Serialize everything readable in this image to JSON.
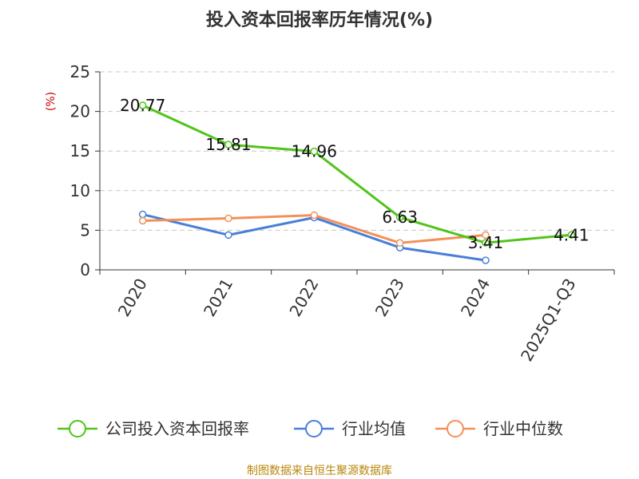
{
  "chart_data": {
    "type": "line",
    "title": "投入资本回报率历年情况(%)",
    "ylabel": "(%)",
    "xlabel": "",
    "categories": [
      "2020",
      "2021",
      "2022",
      "2023",
      "2024",
      "2025Q1-Q3"
    ],
    "ylim": [
      0,
      25
    ],
    "yticks": [
      0,
      5,
      10,
      15,
      20,
      25
    ],
    "grid": true,
    "legend_position": "bottom",
    "series": [
      {
        "name": "公司投入资本回报率",
        "color": "#52c41a",
        "values": [
          20.77,
          15.81,
          14.96,
          6.63,
          3.41,
          4.41
        ],
        "labels": [
          "20.77",
          "15.81",
          "14.96",
          "6.63",
          "3.41",
          "4.41"
        ]
      },
      {
        "name": "行业均值",
        "color": "#4a7fd8",
        "values": [
          7.0,
          4.4,
          6.6,
          2.8,
          1.2,
          null
        ]
      },
      {
        "name": "行业中位数",
        "color": "#f4905a",
        "values": [
          6.2,
          6.5,
          6.9,
          3.4,
          4.4,
          null
        ]
      }
    ],
    "source": "制图数据来自恒生聚源数据库"
  }
}
